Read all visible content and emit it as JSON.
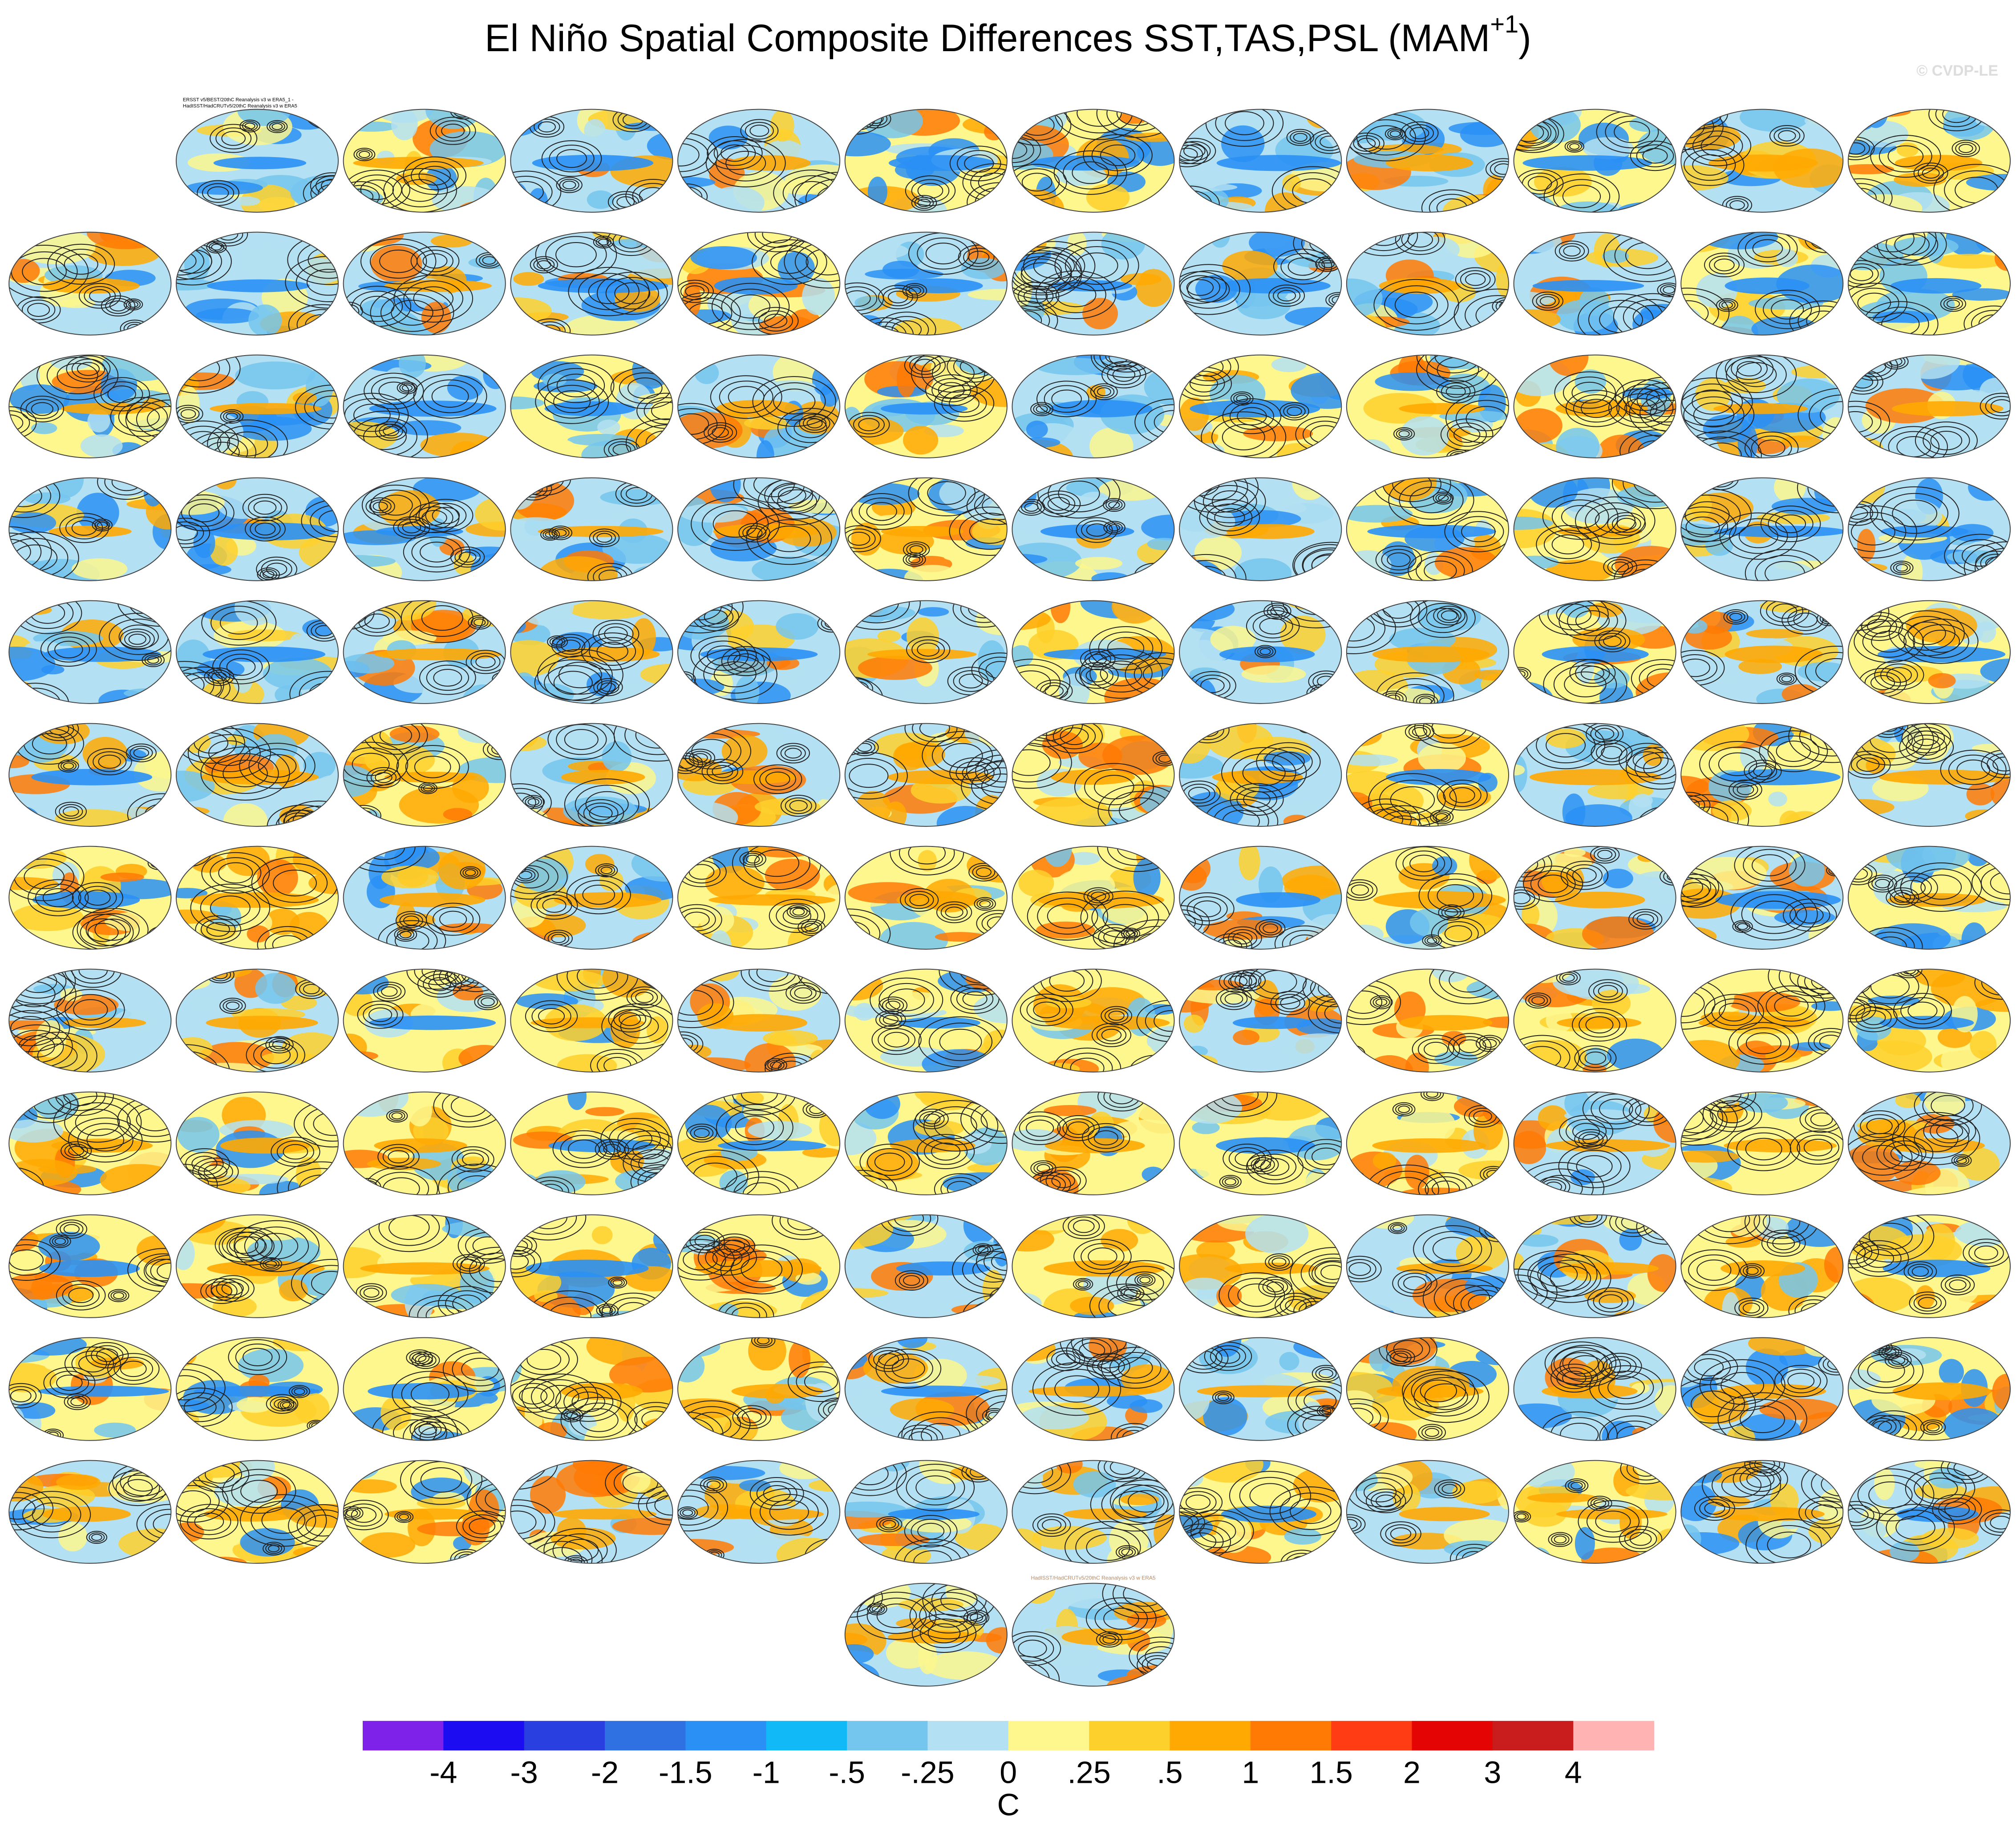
{
  "header": {
    "title": "El Niño Spatial Composite Differences SST,TAS,PSL (MAM",
    "title_superscript": "+1",
    "title_end": ")",
    "copyright": "© CVDP-LE"
  },
  "panel_titles": {
    "first": [
      "ERSST v5/BEST/20thC Reanalysis v3 w ERA5_1 -",
      "HadISST/HadCRUTv5/20thC Reanalysis v3 w ERA5"
    ],
    "last": "HadISST/HadCRUTv5/20thC Reanalysis v3 w ERA5"
  },
  "colorbar": {
    "levels": [
      -4,
      -3,
      -2,
      -1.5,
      -1,
      {
        "value": -0.5,
        "label": "-.5"
      },
      {
        "value": -0.25,
        "label": "-.25"
      },
      0,
      {
        "value": 0.25,
        "label": ".25"
      },
      {
        "value": 0.5,
        "label": ".5"
      },
      1,
      1.5,
      2,
      3,
      4
    ],
    "colors": [
      "#7e22ea",
      "#1c0cf2",
      "#2a3fe0",
      "#2f70e2",
      "#2a90f5",
      "#12b9f7",
      "#74c6ee",
      "#b3e0f2",
      "#fdf78e",
      "#fed02c",
      "#ffa902",
      "#ff7a05",
      "#ff3c14",
      "#e50404",
      "#c91d1d",
      "#ffb3b3"
    ],
    "unit": "C"
  }
}
